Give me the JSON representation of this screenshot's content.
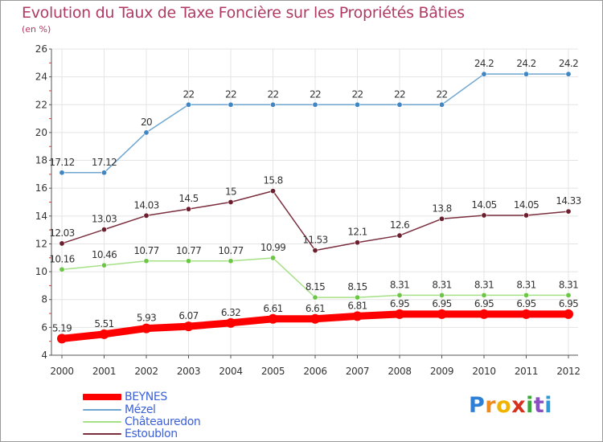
{
  "chart_data": {
    "type": "line",
    "title": "Evolution du Taux de Taxe Foncière sur les Propriétés Bâties",
    "ylabel": "(en %)",
    "xlabel": "",
    "ylim": [
      4,
      26
    ],
    "yticks": [
      4,
      6,
      8,
      10,
      12,
      14,
      16,
      18,
      20,
      22,
      24,
      26
    ],
    "grid": true,
    "legend_position": "bottom-left",
    "x": [
      "2000",
      "2001",
      "2002",
      "2003",
      "2004",
      "2005",
      "2006",
      "2007",
      "2008",
      "2009",
      "2010",
      "2011",
      "2012"
    ],
    "series": [
      {
        "name": "Mézel",
        "color": "#6fa6cf",
        "marker_color": "#3f86c2",
        "values": [
          17.12,
          17.12,
          20,
          22,
          22,
          22,
          22,
          22,
          22,
          22,
          24.2,
          24.2,
          24.2
        ],
        "labels": [
          "17.12",
          "17.12",
          "20",
          "22",
          "22",
          "22",
          "22",
          "22",
          "22",
          "22",
          "24.2",
          "24.2",
          "24.2"
        ]
      },
      {
        "name": "Estoublon",
        "color": "#7a2e3e",
        "marker_color": "#6b1f2e",
        "values": [
          12.03,
          13.03,
          14.03,
          14.5,
          15,
          15.8,
          11.53,
          12.1,
          12.6,
          13.8,
          14.05,
          14.05,
          14.33
        ],
        "labels": [
          "12.03",
          "13.03",
          "14.03",
          "14.5",
          "15",
          "15.8",
          "11.53",
          "12.1",
          "12.6",
          "13.8",
          "14.05",
          "14.05",
          "14.33"
        ]
      },
      {
        "name": "Châteauredon",
        "color": "#a6e086",
        "marker_color": "#6cc645",
        "values": [
          10.16,
          10.46,
          10.77,
          10.77,
          10.77,
          10.99,
          8.15,
          8.15,
          8.31,
          8.31,
          8.31,
          8.31,
          8.31
        ],
        "labels": [
          "10.16",
          "10.46",
          "10.77",
          "10.77",
          "10.77",
          "10.99",
          "8.15",
          "8.15",
          "8.31",
          "8.31",
          "8.31",
          "8.31",
          "8.31"
        ]
      },
      {
        "name": "BEYNES",
        "color": "#ff0000",
        "marker_color": "#ff0000",
        "values": [
          5.19,
          5.51,
          5.93,
          6.07,
          6.32,
          6.61,
          6.61,
          6.81,
          6.95,
          6.95,
          6.95,
          6.95,
          6.95
        ],
        "labels": [
          "5.19",
          "5.51",
          "5.93",
          "6.07",
          "6.32",
          "6.61",
          "6.61",
          "6.81",
          "6.95",
          "6.95",
          "6.95",
          "6.95",
          "6.95"
        ]
      }
    ],
    "legend": [
      "BEYNES",
      "Mézel",
      "Châteauredon",
      "Estoublon"
    ]
  },
  "logo": {
    "letters": [
      "P",
      "r",
      "o",
      "x",
      "i",
      "t",
      "i"
    ],
    "colors": [
      "#2e7fd6",
      "#f08a1c",
      "#f0b400",
      "#d6301e",
      "#3aa83a",
      "#8a4fc0",
      "#2e9ad6"
    ]
  }
}
